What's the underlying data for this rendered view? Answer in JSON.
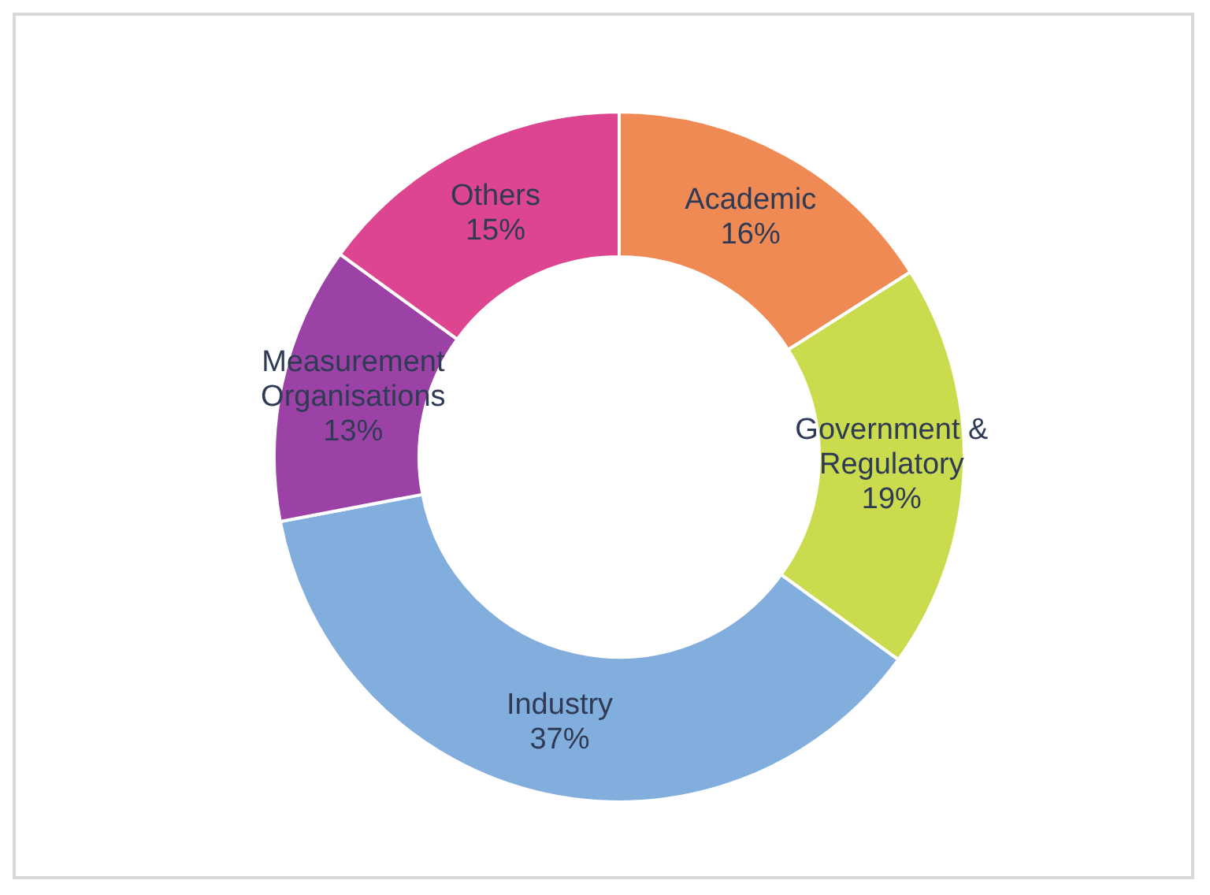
{
  "chart_data": {
    "type": "donut",
    "categories": [
      "Academic",
      "Government & Regulatory",
      "Industry",
      "Measurement Organisations",
      "Others"
    ],
    "values": [
      16,
      19,
      37,
      13,
      15
    ],
    "value_labels": [
      "16%",
      "19%",
      "37%",
      "13%",
      "15%"
    ],
    "colors": [
      "#f08a55",
      "#cadb4e",
      "#82aede",
      "#9c42a6",
      "#de4590"
    ]
  }
}
